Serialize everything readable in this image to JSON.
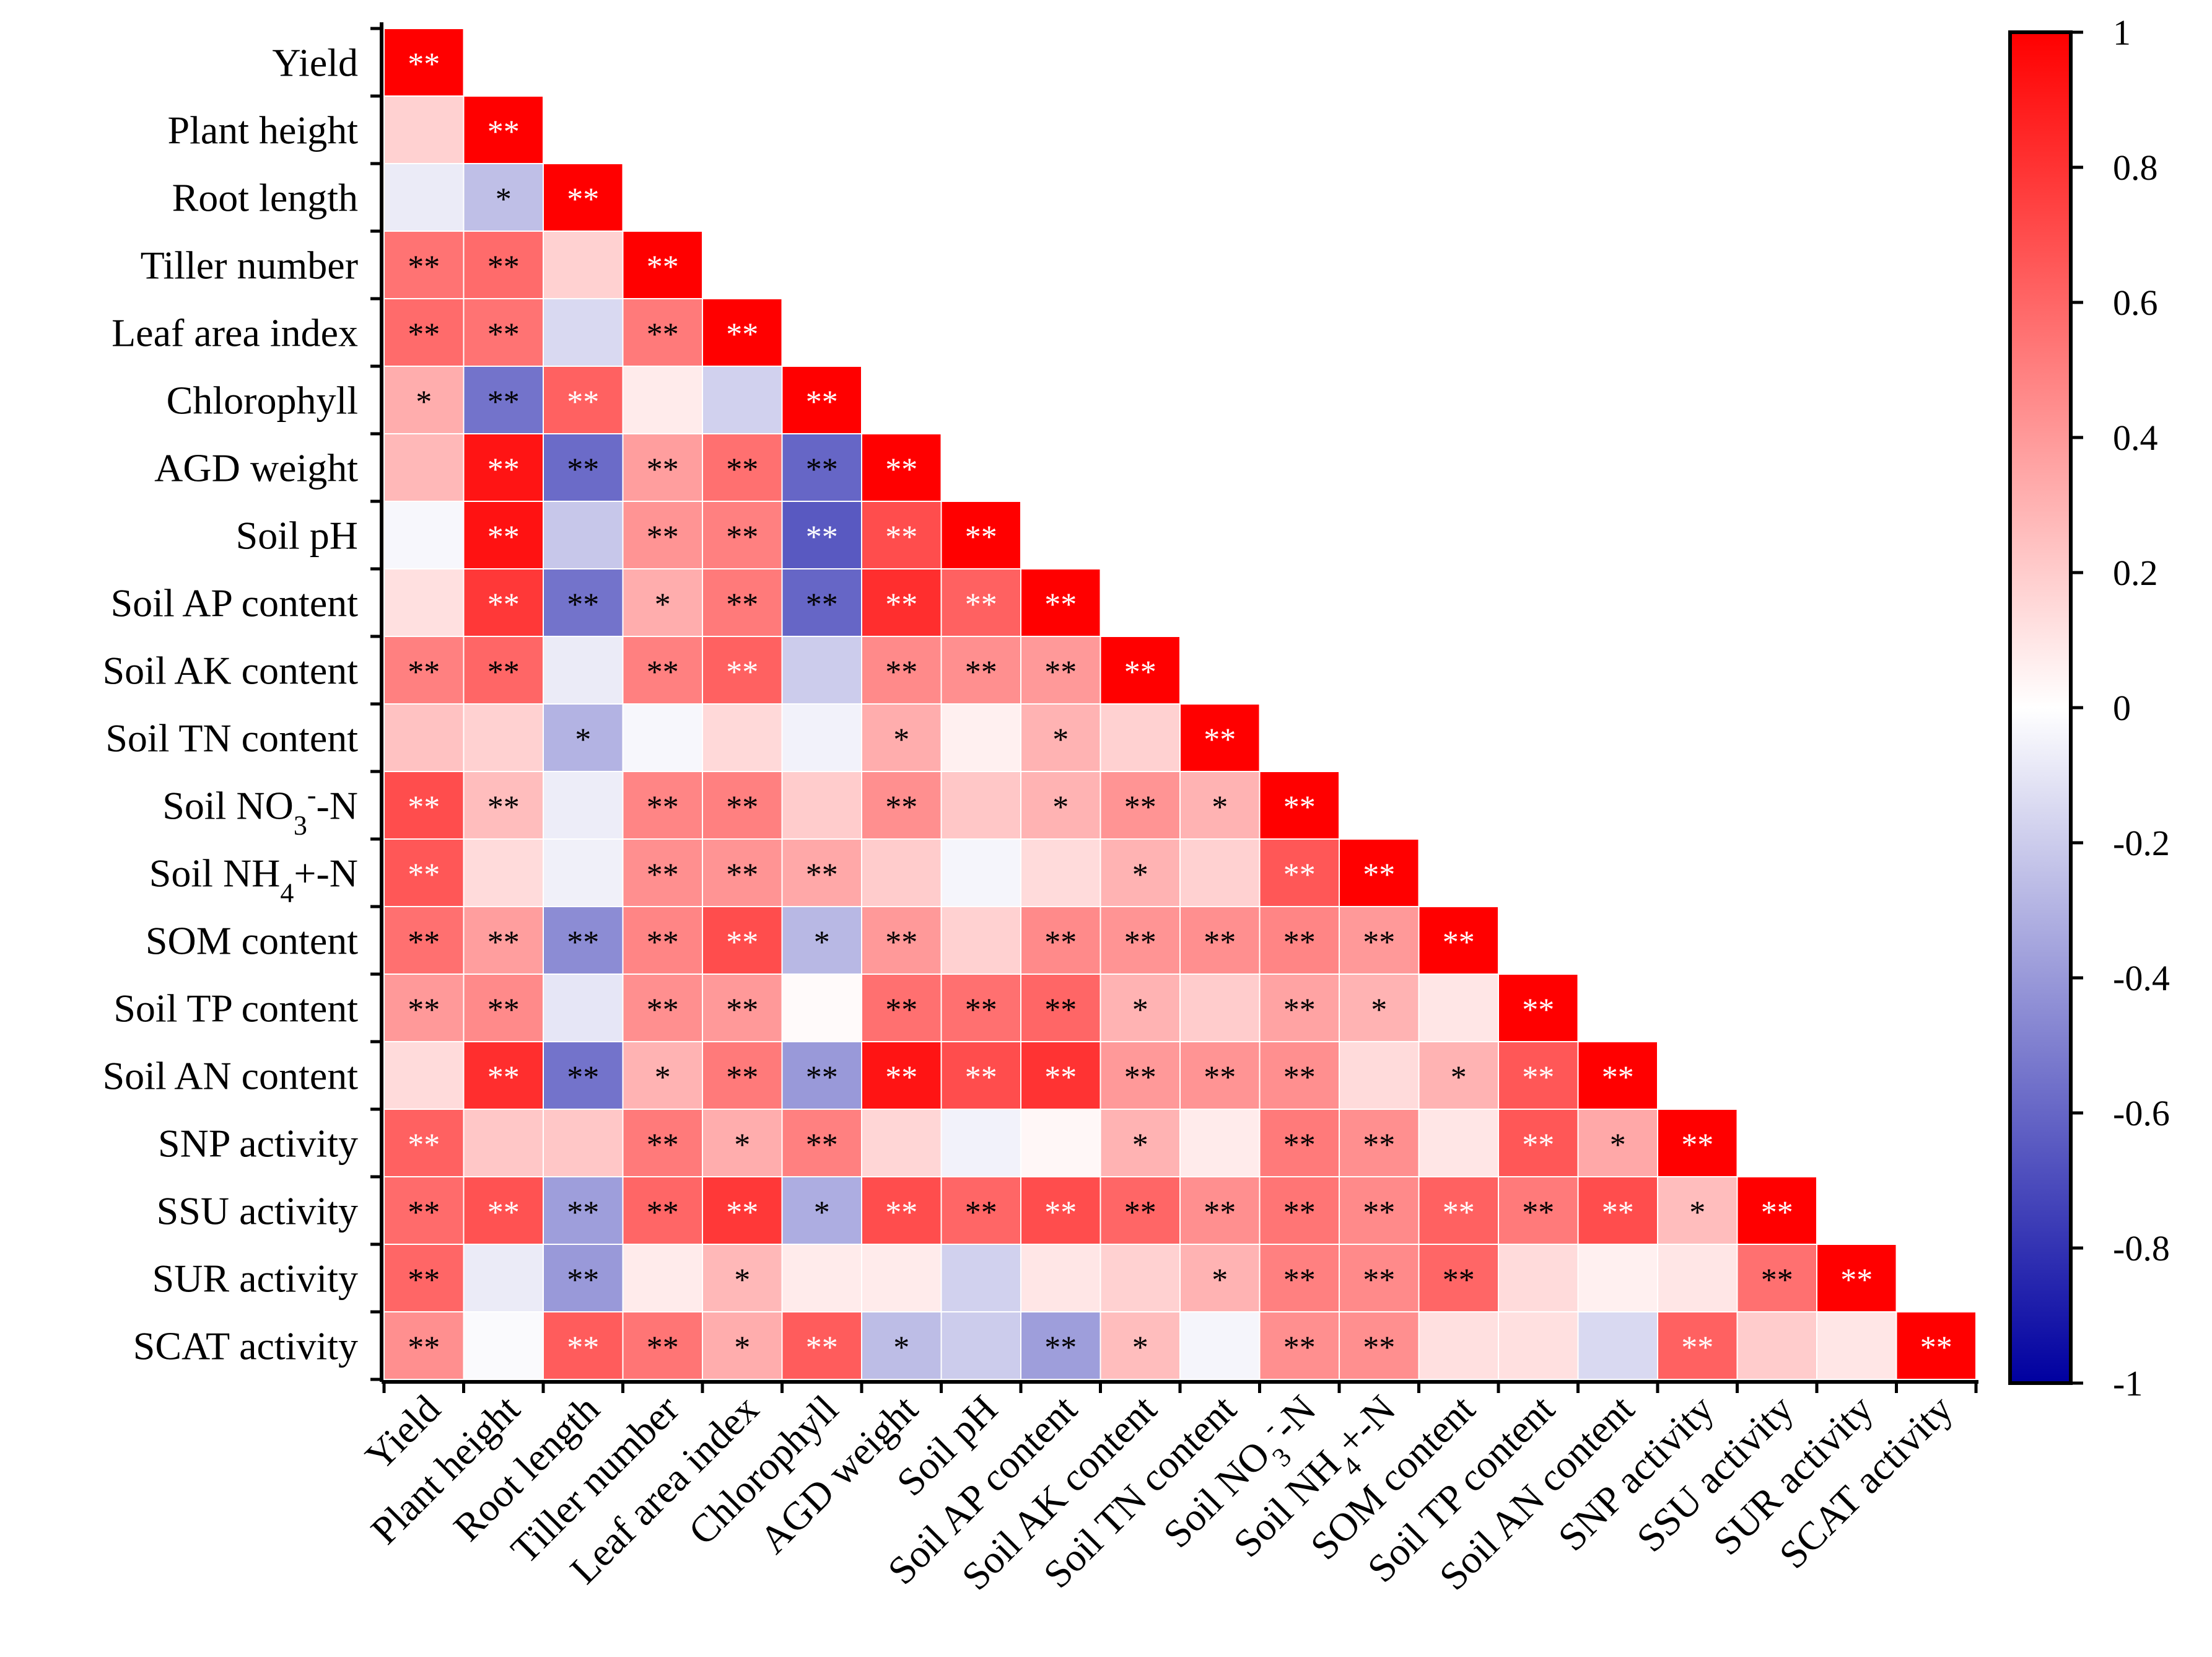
{
  "chart_data": {
    "type": "heatmap",
    "subtype": "lower-triangular correlation matrix",
    "variables": [
      {
        "label": "Yield"
      },
      {
        "label": "Plant height"
      },
      {
        "label": "Root length"
      },
      {
        "label": "Tiller number"
      },
      {
        "label": "Leaf area index"
      },
      {
        "label": "Chlorophyll"
      },
      {
        "label": "AGD weight"
      },
      {
        "label": "Soil pH"
      },
      {
        "label": "Soil AP content"
      },
      {
        "label": "Soil AK content"
      },
      {
        "label": "Soil TN content"
      },
      {
        "label": "Soil NO3-N",
        "pre": "Soil NO",
        "sub": "3",
        "sup": "-",
        "post": "-N"
      },
      {
        "label": "Soil NH4+-N",
        "pre": "Soil NH",
        "sub": "4",
        "sup": "",
        "post": "+-N"
      },
      {
        "label": "SOM content"
      },
      {
        "label": "Soil TP content"
      },
      {
        "label": "Soil AN content"
      },
      {
        "label": "SNP activity"
      },
      {
        "label": "SSU activity"
      },
      {
        "label": "SUR activity"
      },
      {
        "label": "SCAT activity"
      }
    ],
    "values": [
      [
        1.0
      ],
      [
        0.18,
        1.0
      ],
      [
        -0.08,
        -0.25,
        1.0
      ],
      [
        0.55,
        0.58,
        0.18,
        1.0
      ],
      [
        0.58,
        0.55,
        -0.15,
        0.52,
        1.0
      ],
      [
        0.32,
        -0.55,
        0.62,
        0.08,
        -0.18,
        1.0
      ],
      [
        0.28,
        0.92,
        -0.58,
        0.38,
        0.56,
        -0.6,
        1.0
      ],
      [
        -0.03,
        0.93,
        -0.22,
        0.42,
        0.5,
        -0.65,
        0.7,
        1.0
      ],
      [
        0.12,
        0.78,
        -0.55,
        0.32,
        0.52,
        -0.6,
        0.82,
        0.62,
        1.0
      ],
      [
        0.5,
        0.6,
        -0.08,
        0.5,
        0.62,
        -0.2,
        0.46,
        0.44,
        0.4,
        1.0
      ],
      [
        0.24,
        0.18,
        -0.3,
        -0.03,
        0.15,
        -0.05,
        0.32,
        0.06,
        0.3,
        0.18,
        1.0
      ],
      [
        0.7,
        0.26,
        -0.07,
        0.48,
        0.5,
        0.2,
        0.44,
        0.22,
        0.3,
        0.42,
        0.3,
        1.0
      ],
      [
        0.66,
        0.14,
        -0.06,
        0.44,
        0.42,
        0.34,
        0.2,
        -0.04,
        0.14,
        0.3,
        0.18,
        0.66,
        1.0
      ],
      [
        0.56,
        0.38,
        -0.45,
        0.48,
        0.7,
        -0.28,
        0.4,
        0.18,
        0.46,
        0.42,
        0.44,
        0.48,
        0.4,
        1.0
      ],
      [
        0.4,
        0.46,
        -0.1,
        0.44,
        0.4,
        0.02,
        0.56,
        0.56,
        0.6,
        0.3,
        0.2,
        0.36,
        0.3,
        0.1,
        1.0
      ],
      [
        0.14,
        0.82,
        -0.55,
        0.3,
        0.52,
        -0.4,
        0.92,
        0.7,
        0.8,
        0.4,
        0.42,
        0.44,
        0.14,
        0.3,
        0.66,
        1.0
      ],
      [
        0.62,
        0.22,
        0.22,
        0.52,
        0.32,
        0.5,
        0.16,
        -0.05,
        0.03,
        0.3,
        0.08,
        0.52,
        0.44,
        0.1,
        0.66,
        0.34,
        1.0
      ],
      [
        0.58,
        0.68,
        -0.38,
        0.6,
        0.78,
        -0.32,
        0.7,
        0.6,
        0.7,
        0.6,
        0.44,
        0.54,
        0.46,
        0.62,
        0.52,
        0.7,
        0.26,
        1.0
      ],
      [
        0.6,
        -0.08,
        -0.4,
        0.08,
        0.28,
        0.08,
        0.08,
        -0.18,
        0.1,
        0.18,
        0.3,
        0.5,
        0.46,
        0.6,
        0.14,
        0.06,
        0.1,
        0.56,
        1.0
      ],
      [
        0.44,
        -0.02,
        0.64,
        0.54,
        0.32,
        0.64,
        -0.26,
        -0.2,
        -0.38,
        0.26,
        -0.04,
        0.44,
        0.44,
        0.12,
        0.12,
        -0.15,
        0.62,
        0.2,
        0.1,
        1.0
      ]
    ],
    "significance": [
      [
        "**"
      ],
      [
        "",
        "**"
      ],
      [
        "",
        "*",
        "**"
      ],
      [
        "**",
        "**",
        "",
        "**"
      ],
      [
        "**",
        "**",
        "",
        "**",
        "**"
      ],
      [
        "*",
        "**",
        "**",
        "",
        "",
        "**"
      ],
      [
        "",
        "**",
        "**",
        "**",
        "**",
        "**",
        "**"
      ],
      [
        "",
        "**",
        "",
        "**",
        "**",
        "**",
        "**",
        "**"
      ],
      [
        "",
        "**",
        "**",
        "*",
        "**",
        "**",
        "**",
        "**",
        "**"
      ],
      [
        "**",
        "**",
        "",
        "**",
        "**",
        "",
        "**",
        "**",
        "**",
        "**"
      ],
      [
        "",
        "",
        "*",
        "",
        "",
        "",
        "*",
        "",
        "*",
        "",
        "**"
      ],
      [
        "**",
        "**",
        "",
        "**",
        "**",
        "",
        "**",
        "",
        "*",
        "**",
        "*",
        "**"
      ],
      [
        "**",
        "",
        "",
        "**",
        "**",
        "**",
        "",
        "",
        "",
        "*",
        "",
        "**",
        "**"
      ],
      [
        "**",
        "**",
        "**",
        "**",
        "**",
        "*",
        "**",
        "",
        "**",
        "**",
        "**",
        "**",
        "**",
        "**"
      ],
      [
        "**",
        "**",
        "",
        "**",
        "**",
        "",
        "**",
        "**",
        "**",
        "*",
        "",
        "**",
        "*",
        "",
        "**"
      ],
      [
        "",
        "**",
        "**",
        "*",
        "**",
        "**",
        "**",
        "**",
        "**",
        "**",
        "**",
        "**",
        "",
        "*",
        "**",
        "**"
      ],
      [
        "**",
        "",
        "",
        "**",
        "*",
        "**",
        "",
        "",
        "",
        "*",
        "",
        "**",
        "**",
        "",
        "**",
        "*",
        "**"
      ],
      [
        "**",
        "**",
        "**",
        "**",
        "**",
        "*",
        "**",
        "**",
        "**",
        "**",
        "**",
        "**",
        "**",
        "**",
        "**",
        "**",
        "*",
        "**"
      ],
      [
        "**",
        "",
        "**",
        "",
        "*",
        "",
        "",
        "",
        "",
        "",
        "*",
        "**",
        "**",
        "**",
        "",
        "",
        "",
        "**",
        "**"
      ],
      [
        "**",
        "",
        "**",
        "**",
        "*",
        "**",
        "*",
        "",
        "**",
        "*",
        "",
        "**",
        "**",
        "",
        "",
        "",
        "**",
        "",
        "",
        "**"
      ]
    ],
    "colorbar": {
      "min": -1,
      "max": 1,
      "ticks": [
        "1",
        "0.8",
        "0.6",
        "0.4",
        "0.2",
        "0",
        "-0.2",
        "-0.4",
        "-0.6",
        "-0.8",
        "-1"
      ],
      "colors": {
        "neg": "#0000a0",
        "mid": "#ffffff",
        "pos": "#ff0000"
      }
    }
  }
}
